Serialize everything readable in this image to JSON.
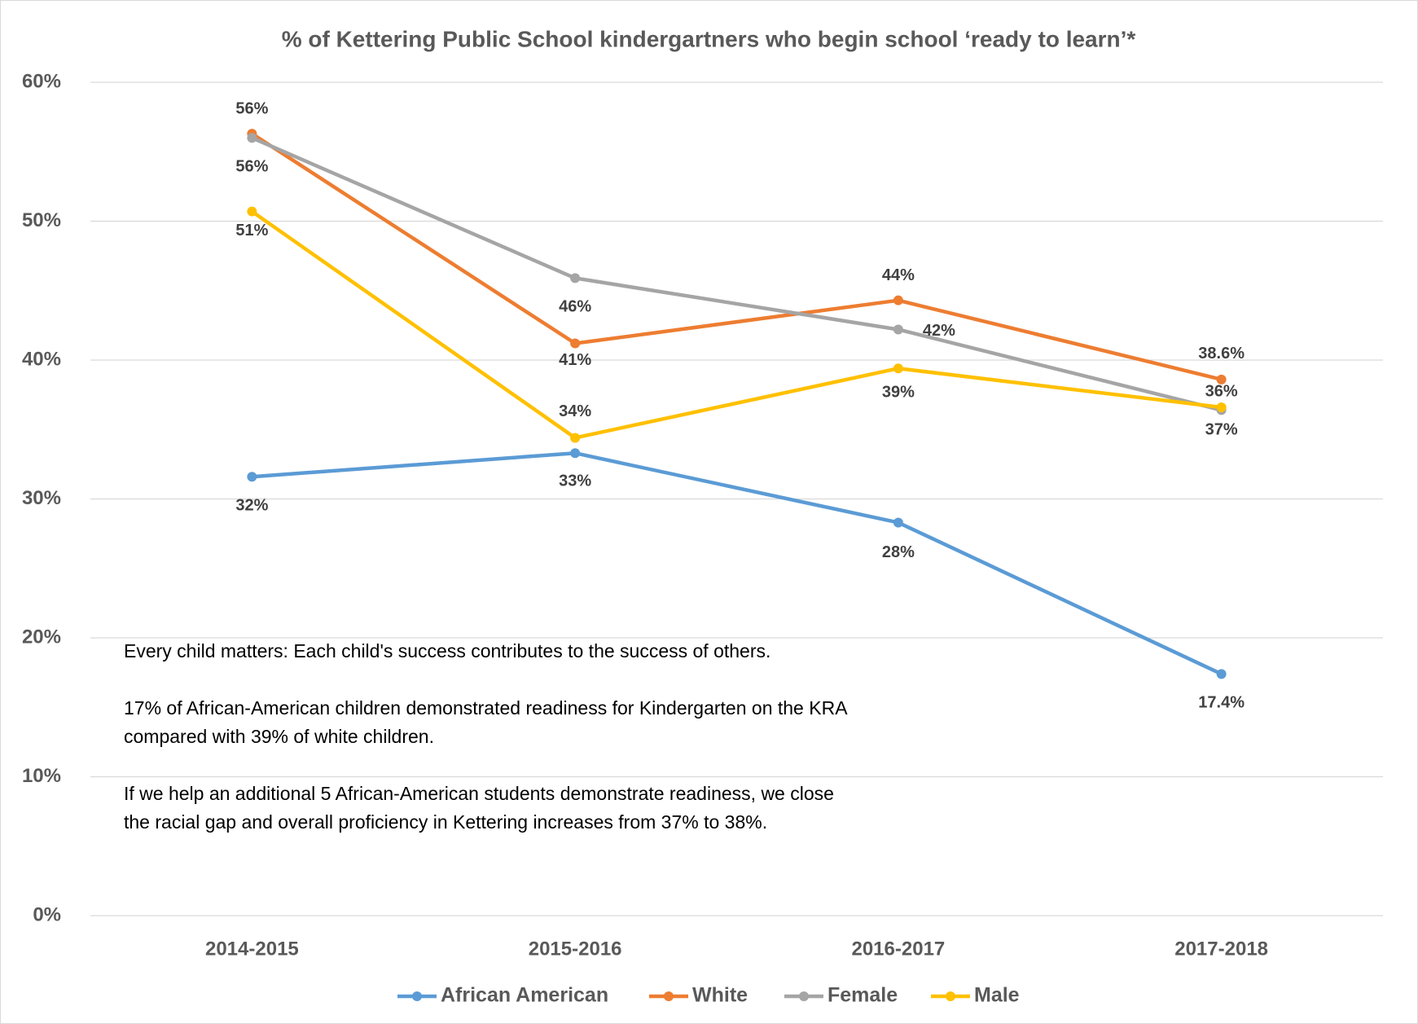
{
  "chart_data": {
    "type": "line",
    "title": "% of Kettering Public School kindergartners who begin school ‘ready to learn’*",
    "categories": [
      "2014-2015",
      "2015-2016",
      "2016-2017",
      "2017-2018"
    ],
    "series": [
      {
        "name": "African American",
        "color": "#5b9bd5",
        "values": [
          31.6,
          33.3,
          28.3,
          17.4
        ],
        "value_labels": [
          "32%",
          "33%",
          "28%",
          "17.4%"
        ]
      },
      {
        "name": "White",
        "color": "#ed7d31",
        "values": [
          56.3,
          41.2,
          44.3,
          38.6
        ],
        "value_labels": [
          "56%",
          "41%",
          "44%",
          "38.6%"
        ]
      },
      {
        "name": "Female",
        "color": "#a5a5a5",
        "values": [
          56.0,
          45.9,
          42.2,
          36.4
        ],
        "value_labels": [
          "56%",
          "46%",
          "42%",
          "36%"
        ]
      },
      {
        "name": "Male",
        "color": "#ffc000",
        "values": [
          50.7,
          34.4,
          39.4,
          36.6
        ],
        "value_labels": [
          "51%",
          "34%",
          "39%",
          "37%"
        ]
      }
    ],
    "ylim": [
      0,
      60
    ],
    "yticks": [
      {
        "value": 0,
        "label": "0%"
      },
      {
        "value": 10,
        "label": "10%"
      },
      {
        "value": 20,
        "label": "20%"
      },
      {
        "value": 30,
        "label": "30%"
      },
      {
        "value": 40,
        "label": "40%"
      },
      {
        "value": 50,
        "label": "50%"
      },
      {
        "value": 60,
        "label": "60%"
      }
    ],
    "grid": true,
    "legend": "bottom",
    "annotation": [
      [
        "Every child matters: Each child's success contributes to the success of others."
      ],
      [
        "17% of African-American children demonstrated readiness for Kindergarten on the KRA",
        "compared with 39% of white children."
      ],
      [
        "If we help an additional 5 African-American students demonstrate readiness, we close",
        "the racial gap and overall proficiency in Kettering increases from 37% to 38%."
      ]
    ]
  }
}
